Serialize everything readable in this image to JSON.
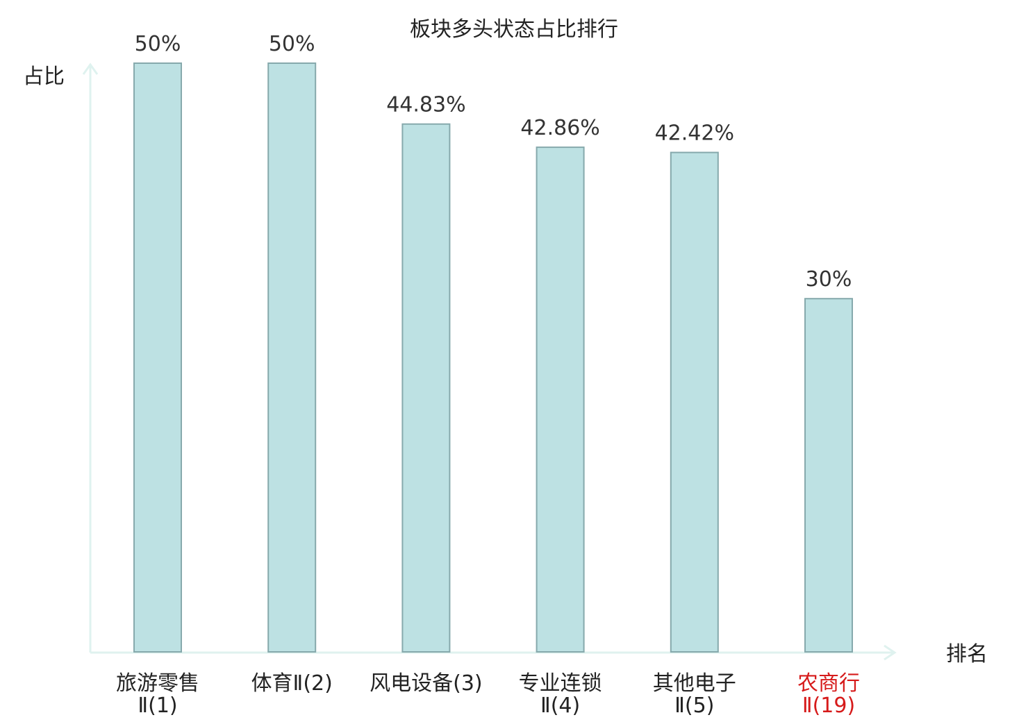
{
  "chart_data": {
    "type": "bar",
    "title": "板块多头状态占比排行",
    "ylabel": "占比",
    "xlabel": "排名",
    "ylim": [
      0,
      50
    ],
    "grid": false,
    "categories": [
      {
        "name": "旅游零售Ⅱ",
        "rank": "(1)"
      },
      {
        "name": "体育Ⅱ",
        "rank": "(2)"
      },
      {
        "name": "风电设备",
        "rank": "(3)"
      },
      {
        "name": "专业连锁Ⅱ",
        "rank": "(4)"
      },
      {
        "name": "其他电子Ⅱ",
        "rank": "(5)"
      },
      {
        "name": "农商行Ⅱ",
        "rank": "(19)"
      }
    ],
    "values": [
      50,
      50,
      44.83,
      42.86,
      42.42,
      30
    ],
    "value_labels": [
      "50%",
      "50%",
      "44.83%",
      "42.86%",
      "42.42%",
      "30%"
    ],
    "highlight_index": 5
  },
  "colors": {
    "bar_fill": "#bde1e3",
    "bar_stroke": "#86a9ac",
    "axis": "#dff2ef",
    "text": "#222222",
    "value_text": "#333333",
    "highlight": "#d61a1a"
  }
}
